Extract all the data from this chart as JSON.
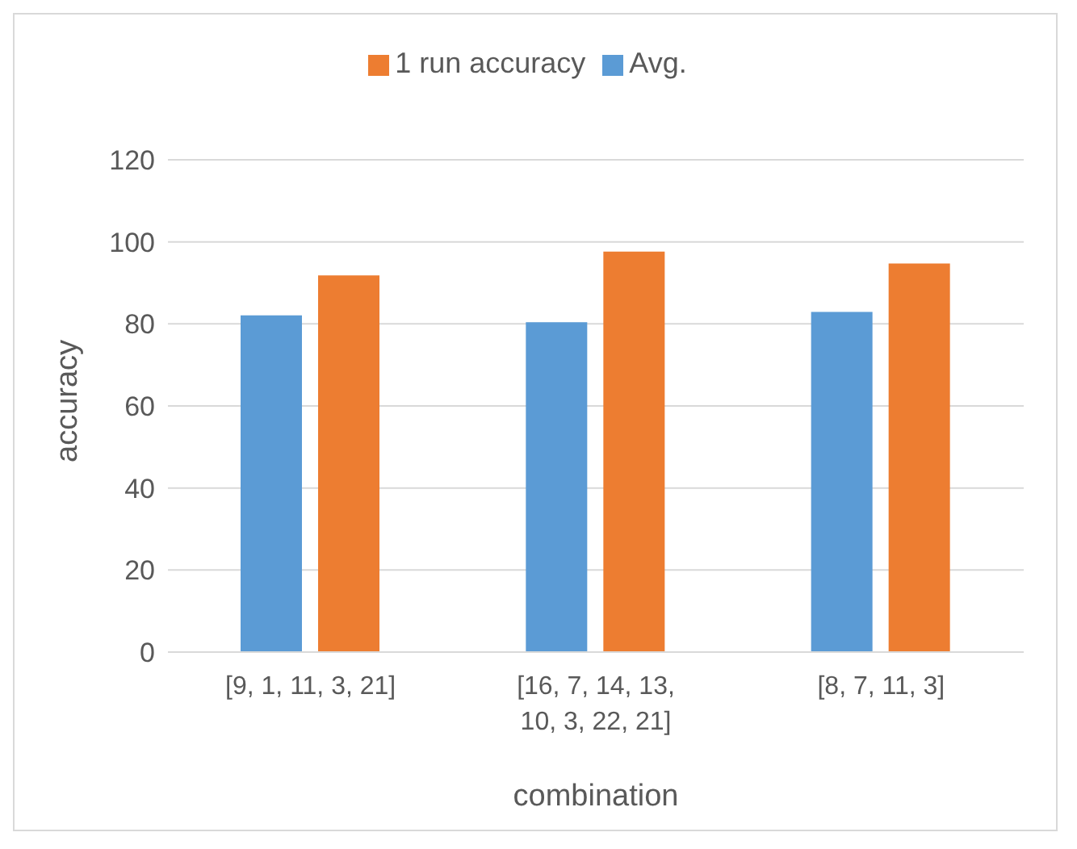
{
  "chart_data": {
    "type": "bar",
    "xlabel": "combination",
    "ylabel": "accuracy",
    "categories": [
      "[9, 1, 11, 3, 21]",
      "[16, 7, 14, 13, 10, 3, 22, 21]",
      "[8, 7, 11, 3]"
    ],
    "series": [
      {
        "name": "Avg.",
        "color": "#5b9bd5",
        "values": [
          82.1,
          80.4,
          82.9
        ]
      },
      {
        "name": "1 run accuracy",
        "color": "#ed7d31",
        "values": [
          91.8,
          97.6,
          94.7
        ]
      }
    ],
    "ylim": [
      0,
      120
    ],
    "yticks": [
      0,
      20,
      40,
      60,
      80,
      100,
      120
    ],
    "grid": "y",
    "legend": "top"
  }
}
